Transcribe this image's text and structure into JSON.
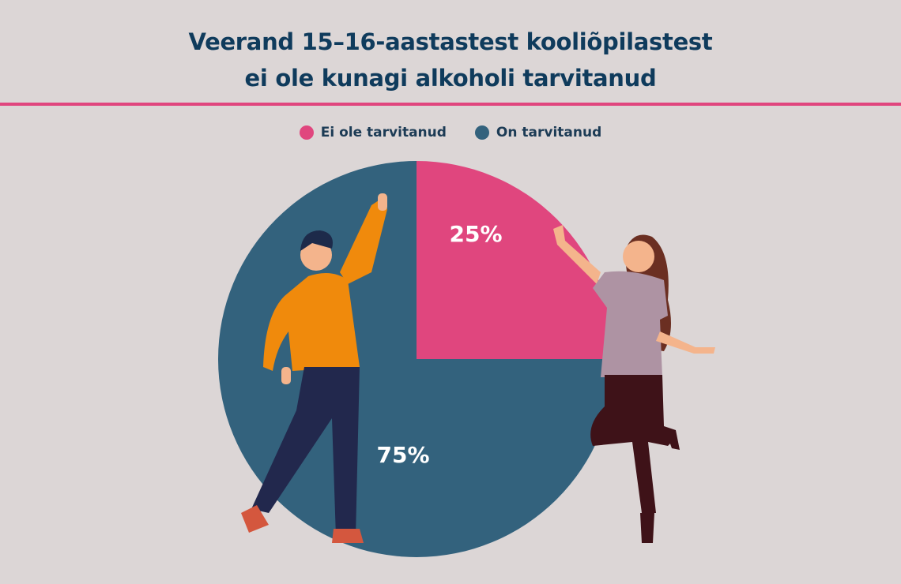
{
  "title_line1": "Veerand 15–16-aastastest kooliõpilastest",
  "title_line2": "ei ole kunagi alkoholi tarvitanud",
  "chart_data": {
    "type": "pie",
    "title": "Veerand 15–16-aastastest kooliõpilastest ei ole kunagi alkoholi tarvitanud",
    "legend_position": "top",
    "slices": [
      {
        "name": "Ei ole tarvitanud",
        "value": 25,
        "label": "25%",
        "color": "#e0467e"
      },
      {
        "name": "On tarvitanud",
        "value": 75,
        "label": "75%",
        "color": "#33627d"
      }
    ]
  }
}
